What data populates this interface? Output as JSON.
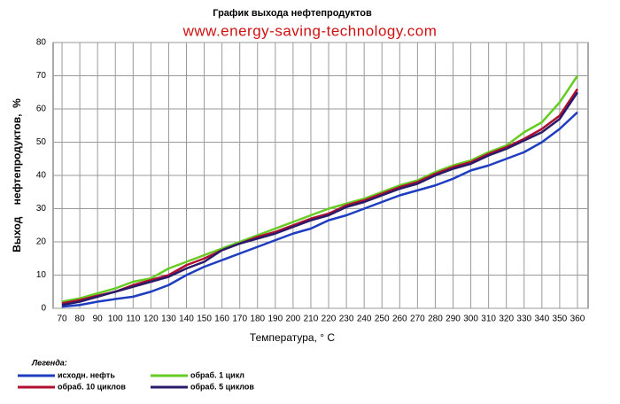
{
  "chart_data": {
    "type": "line",
    "title": "График выхода нефтепродуктов",
    "subtitle": "www.energy-saving-technology.com",
    "y_label": "Выход    нефтепродуктов,  %",
    "x_label": "Температура, ° С",
    "legend_title": "Легенда:",
    "x": [
      70,
      80,
      90,
      100,
      110,
      120,
      130,
      140,
      150,
      160,
      170,
      180,
      190,
      200,
      210,
      220,
      230,
      240,
      250,
      260,
      270,
      280,
      290,
      300,
      310,
      320,
      330,
      340,
      350,
      360
    ],
    "xlim": [
      65,
      366
    ],
    "xticks": [
      70,
      80,
      90,
      100,
      110,
      120,
      130,
      140,
      150,
      160,
      170,
      180,
      190,
      200,
      210,
      220,
      230,
      240,
      250,
      260,
      270,
      280,
      290,
      300,
      310,
      320,
      330,
      340,
      350,
      360
    ],
    "ylim": [
      0,
      80
    ],
    "yticks": [
      0,
      10,
      20,
      30,
      40,
      50,
      60,
      70,
      80
    ],
    "grid": true,
    "series": [
      {
        "name": "исходн. нефть",
        "color": "#1e3cc0",
        "values": [
          0.5,
          1,
          2,
          2.8,
          3.5,
          5,
          7,
          10,
          12.5,
          14.5,
          16.5,
          18.5,
          20.5,
          22.5,
          24,
          26.5,
          28,
          30,
          32,
          34,
          35.5,
          37,
          39,
          41.5,
          43,
          45,
          47,
          50,
          54,
          59
        ]
      },
      {
        "name": "обраб. 1 цикл",
        "color": "#66cc22",
        "values": [
          2,
          3,
          4.5,
          6,
          8,
          9,
          12,
          14,
          16,
          18,
          20,
          22,
          24,
          26,
          28,
          30,
          31.5,
          33,
          35,
          37,
          38.5,
          41,
          43,
          44.5,
          47,
          49,
          53,
          56,
          62,
          70
        ]
      },
      {
        "name": "обраб. 10 циклов",
        "color": "#b01030",
        "values": [
          1.5,
          2.5,
          3.8,
          5,
          7,
          8.5,
          10,
          13,
          15,
          17.5,
          19.5,
          21.5,
          23,
          25,
          27,
          28.5,
          31,
          32.5,
          34.5,
          36.5,
          38,
          40.5,
          42.5,
          44,
          46.5,
          48.5,
          51,
          54,
          58,
          66
        ]
      },
      {
        "name": "обраб. 5 циклов",
        "color": "#2a1a6a",
        "values": [
          1,
          2,
          3.5,
          5,
          6.5,
          8,
          9.5,
          12,
          14,
          17.5,
          19.5,
          21,
          22.5,
          24.5,
          26.5,
          28,
          30.5,
          32,
          34,
          36,
          37.5,
          40,
          42,
          43.5,
          46,
          48,
          50.5,
          53,
          57,
          65
        ]
      }
    ]
  }
}
